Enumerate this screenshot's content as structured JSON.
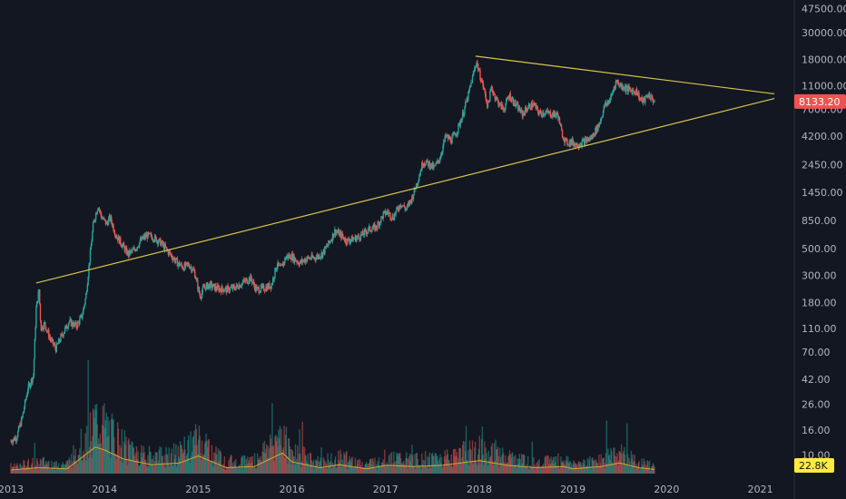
{
  "chart_data": {
    "type": "candlestick",
    "y_scale": "log",
    "y_tick_labels": [
      "47500.00",
      "30000.00",
      "18000.00",
      "11000.00",
      "7000.00",
      "4200.00",
      "2450.00",
      "1450.00",
      "850.00",
      "500.00",
      "300.00",
      "180.00",
      "110.00",
      "70.00",
      "42.00",
      "26.00",
      "16.00",
      "10.00"
    ],
    "y_tick_values": [
      47500,
      30000,
      18000,
      11000,
      7000,
      4200,
      2450,
      1450,
      850,
      500,
      300,
      180,
      110,
      70,
      42,
      26,
      16,
      10
    ],
    "x_tick_labels": [
      "2013",
      "2014",
      "2015",
      "2016",
      "2017",
      "2018",
      "2019",
      "2020",
      "2021"
    ],
    "x_tick_values": [
      2013.0,
      2014.0,
      2015.0,
      2016.0,
      2017.0,
      2018.0,
      2019.0,
      2020.0,
      2021.0
    ],
    "x_range": [
      2013.0,
      2021.5
    ],
    "y_range": [
      7.0,
      52000
    ],
    "last_price": {
      "label": "8133.20",
      "value": 8133.2,
      "color": "#ef5350"
    },
    "last_volume": {
      "label": "22.8K",
      "color": "#ffeb3b"
    },
    "grid": false,
    "colors": {
      "background": "#131722",
      "up": "#26a69a",
      "down": "#ef5350",
      "trendline": "#d4c54a",
      "volume_ma": "#d4a72c",
      "text": "#b2b5be"
    },
    "price_series": [
      {
        "t": 2013.0,
        "v": 13
      },
      {
        "t": 2013.06,
        "v": 14
      },
      {
        "t": 2013.12,
        "v": 20
      },
      {
        "t": 2013.18,
        "v": 35
      },
      {
        "t": 2013.24,
        "v": 45
      },
      {
        "t": 2013.27,
        "v": 160
      },
      {
        "t": 2013.3,
        "v": 230
      },
      {
        "t": 2013.32,
        "v": 110
      },
      {
        "t": 2013.36,
        "v": 120
      },
      {
        "t": 2013.42,
        "v": 90
      },
      {
        "t": 2013.48,
        "v": 75
      },
      {
        "t": 2013.54,
        "v": 95
      },
      {
        "t": 2013.62,
        "v": 125
      },
      {
        "t": 2013.7,
        "v": 115
      },
      {
        "t": 2013.76,
        "v": 140
      },
      {
        "t": 2013.8,
        "v": 200
      },
      {
        "t": 2013.84,
        "v": 400
      },
      {
        "t": 2013.88,
        "v": 800
      },
      {
        "t": 2013.93,
        "v": 1130
      },
      {
        "t": 2013.97,
        "v": 900
      },
      {
        "t": 2014.02,
        "v": 800
      },
      {
        "t": 2014.06,
        "v": 900
      },
      {
        "t": 2014.12,
        "v": 650
      },
      {
        "t": 2014.18,
        "v": 550
      },
      {
        "t": 2014.25,
        "v": 450
      },
      {
        "t": 2014.32,
        "v": 490
      },
      {
        "t": 2014.4,
        "v": 600
      },
      {
        "t": 2014.45,
        "v": 640
      },
      {
        "t": 2014.52,
        "v": 620
      },
      {
        "t": 2014.6,
        "v": 560
      },
      {
        "t": 2014.66,
        "v": 490
      },
      {
        "t": 2014.72,
        "v": 430
      },
      {
        "t": 2014.78,
        "v": 380
      },
      {
        "t": 2014.84,
        "v": 350
      },
      {
        "t": 2014.9,
        "v": 370
      },
      {
        "t": 2014.96,
        "v": 320
      },
      {
        "t": 2015.02,
        "v": 200
      },
      {
        "t": 2015.06,
        "v": 240
      },
      {
        "t": 2015.12,
        "v": 250
      },
      {
        "t": 2015.2,
        "v": 235
      },
      {
        "t": 2015.3,
        "v": 230
      },
      {
        "t": 2015.4,
        "v": 240
      },
      {
        "t": 2015.5,
        "v": 270
      },
      {
        "t": 2015.56,
        "v": 285
      },
      {
        "t": 2015.62,
        "v": 230
      },
      {
        "t": 2015.7,
        "v": 235
      },
      {
        "t": 2015.78,
        "v": 250
      },
      {
        "t": 2015.84,
        "v": 370
      },
      {
        "t": 2015.88,
        "v": 340
      },
      {
        "t": 2015.94,
        "v": 430
      },
      {
        "t": 2016.0,
        "v": 430
      },
      {
        "t": 2016.08,
        "v": 380
      },
      {
        "t": 2016.16,
        "v": 415
      },
      {
        "t": 2016.24,
        "v": 420
      },
      {
        "t": 2016.32,
        "v": 450
      },
      {
        "t": 2016.4,
        "v": 560
      },
      {
        "t": 2016.46,
        "v": 700
      },
      {
        "t": 2016.52,
        "v": 650
      },
      {
        "t": 2016.58,
        "v": 580
      },
      {
        "t": 2016.66,
        "v": 600
      },
      {
        "t": 2016.74,
        "v": 640
      },
      {
        "t": 2016.82,
        "v": 720
      },
      {
        "t": 2016.9,
        "v": 750
      },
      {
        "t": 2016.98,
        "v": 960
      },
      {
        "t": 2017.02,
        "v": 1000
      },
      {
        "t": 2017.08,
        "v": 900
      },
      {
        "t": 2017.16,
        "v": 1180
      },
      {
        "t": 2017.22,
        "v": 1050
      },
      {
        "t": 2017.28,
        "v": 1300
      },
      {
        "t": 2017.34,
        "v": 1800
      },
      {
        "t": 2017.4,
        "v": 2600
      },
      {
        "t": 2017.46,
        "v": 2500
      },
      {
        "t": 2017.52,
        "v": 2300
      },
      {
        "t": 2017.58,
        "v": 2800
      },
      {
        "t": 2017.64,
        "v": 4200
      },
      {
        "t": 2017.7,
        "v": 3900
      },
      {
        "t": 2017.76,
        "v": 4600
      },
      {
        "t": 2017.82,
        "v": 6200
      },
      {
        "t": 2017.88,
        "v": 9000
      },
      {
        "t": 2017.94,
        "v": 14000
      },
      {
        "t": 2017.97,
        "v": 17500
      },
      {
        "t": 2018.0,
        "v": 14000
      },
      {
        "t": 2018.04,
        "v": 11000
      },
      {
        "t": 2018.09,
        "v": 7500
      },
      {
        "t": 2018.13,
        "v": 10500
      },
      {
        "t": 2018.2,
        "v": 8000
      },
      {
        "t": 2018.26,
        "v": 7000
      },
      {
        "t": 2018.32,
        "v": 9200
      },
      {
        "t": 2018.38,
        "v": 7800
      },
      {
        "t": 2018.46,
        "v": 6400
      },
      {
        "t": 2018.52,
        "v": 7300
      },
      {
        "t": 2018.58,
        "v": 7700
      },
      {
        "t": 2018.64,
        "v": 6500
      },
      {
        "t": 2018.7,
        "v": 6600
      },
      {
        "t": 2018.78,
        "v": 6400
      },
      {
        "t": 2018.84,
        "v": 6300
      },
      {
        "t": 2018.88,
        "v": 4500
      },
      {
        "t": 2018.93,
        "v": 3700
      },
      {
        "t": 2018.98,
        "v": 3800
      },
      {
        "t": 2019.04,
        "v": 3600
      },
      {
        "t": 2019.12,
        "v": 3800
      },
      {
        "t": 2019.2,
        "v": 4100
      },
      {
        "t": 2019.28,
        "v": 5300
      },
      {
        "t": 2019.34,
        "v": 7500
      },
      {
        "t": 2019.4,
        "v": 8500
      },
      {
        "t": 2019.46,
        "v": 12000
      },
      {
        "t": 2019.5,
        "v": 11200
      },
      {
        "t": 2019.56,
        "v": 10500
      },
      {
        "t": 2019.62,
        "v": 10000
      },
      {
        "t": 2019.68,
        "v": 9900
      },
      {
        "t": 2019.72,
        "v": 8400
      },
      {
        "t": 2019.76,
        "v": 8200
      },
      {
        "t": 2019.8,
        "v": 9300
      },
      {
        "t": 2019.84,
        "v": 8700
      },
      {
        "t": 2019.87,
        "v": 8133
      }
    ],
    "volume_series": [
      {
        "t": 2013.0,
        "v": 0.06
      },
      {
        "t": 2013.3,
        "v": 0.1
      },
      {
        "t": 2013.6,
        "v": 0.08
      },
      {
        "t": 2013.9,
        "v": 0.45
      },
      {
        "t": 2014.0,
        "v": 0.4
      },
      {
        "t": 2014.2,
        "v": 0.25
      },
      {
        "t": 2014.5,
        "v": 0.15
      },
      {
        "t": 2014.8,
        "v": 0.18
      },
      {
        "t": 2015.0,
        "v": 0.3
      },
      {
        "t": 2015.3,
        "v": 0.1
      },
      {
        "t": 2015.6,
        "v": 0.12
      },
      {
        "t": 2015.9,
        "v": 0.35
      },
      {
        "t": 2016.0,
        "v": 0.2
      },
      {
        "t": 2016.3,
        "v": 0.1
      },
      {
        "t": 2016.5,
        "v": 0.15
      },
      {
        "t": 2016.8,
        "v": 0.08
      },
      {
        "t": 2017.0,
        "v": 0.14
      },
      {
        "t": 2017.3,
        "v": 0.12
      },
      {
        "t": 2017.6,
        "v": 0.14
      },
      {
        "t": 2017.9,
        "v": 0.2
      },
      {
        "t": 2018.0,
        "v": 0.22
      },
      {
        "t": 2018.3,
        "v": 0.14
      },
      {
        "t": 2018.6,
        "v": 0.1
      },
      {
        "t": 2018.9,
        "v": 0.12
      },
      {
        "t": 2019.0,
        "v": 0.08
      },
      {
        "t": 2019.3,
        "v": 0.12
      },
      {
        "t": 2019.5,
        "v": 0.18
      },
      {
        "t": 2019.7,
        "v": 0.1
      },
      {
        "t": 2019.87,
        "v": 0.07
      }
    ],
    "trendlines": [
      {
        "from": {
          "t": 2013.27,
          "v": 260
        },
        "to": {
          "t": 2021.15,
          "v": 8600
        }
      },
      {
        "from": {
          "t": 2017.96,
          "v": 19200
        },
        "to": {
          "t": 2021.15,
          "v": 9400
        }
      }
    ]
  }
}
